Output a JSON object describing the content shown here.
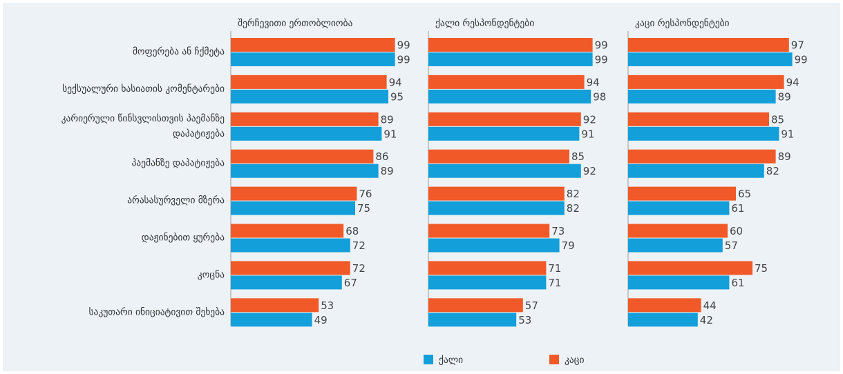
{
  "chart_data": {
    "type": "bar",
    "orientation": "horizontal",
    "xlim": [
      0,
      100
    ],
    "categories": [
      [
        "მოფერება ან ჩქმეტა"
      ],
      [
        "სექსუალური ხასიათის კომენტარები"
      ],
      [
        "კარიერული წინსვლისთვის პაემანზე",
        "დაპატიჟება"
      ],
      [
        "პაემანზე დაპატიჟება"
      ],
      [
        "არასასურველი მზერა"
      ],
      [
        "დაჟინებით ყურება"
      ],
      [
        "კოცნა"
      ],
      [
        "საკუთარი ინიციატივით შეხება"
      ]
    ],
    "legend": [
      {
        "name": "ქალი",
        "color": "#139fd9"
      },
      {
        "name": "კაცი",
        "color": "#f15a28"
      }
    ],
    "panels": [
      {
        "title": "შერჩევითი ერთობლიობა",
        "series": [
          {
            "values": [
              99,
              95,
              91,
              89,
              75,
              72,
              67,
              49
            ]
          },
          {
            "values": [
              99,
              94,
              89,
              86,
              76,
              68,
              72,
              53
            ]
          }
        ]
      },
      {
        "title": "ქალი რესპონდენტები",
        "series": [
          {
            "values": [
              99,
              98,
              91,
              92,
              82,
              79,
              71,
              53
            ]
          },
          {
            "values": [
              99,
              94,
              92,
              85,
              82,
              73,
              71,
              57
            ]
          }
        ]
      },
      {
        "title": "კაცი რესპონდენტები",
        "series": [
          {
            "values": [
              99,
              89,
              91,
              82,
              61,
              57,
              61,
              42
            ]
          },
          {
            "values": [
              97,
              94,
              85,
              89,
              65,
              60,
              75,
              44
            ]
          }
        ]
      }
    ]
  }
}
